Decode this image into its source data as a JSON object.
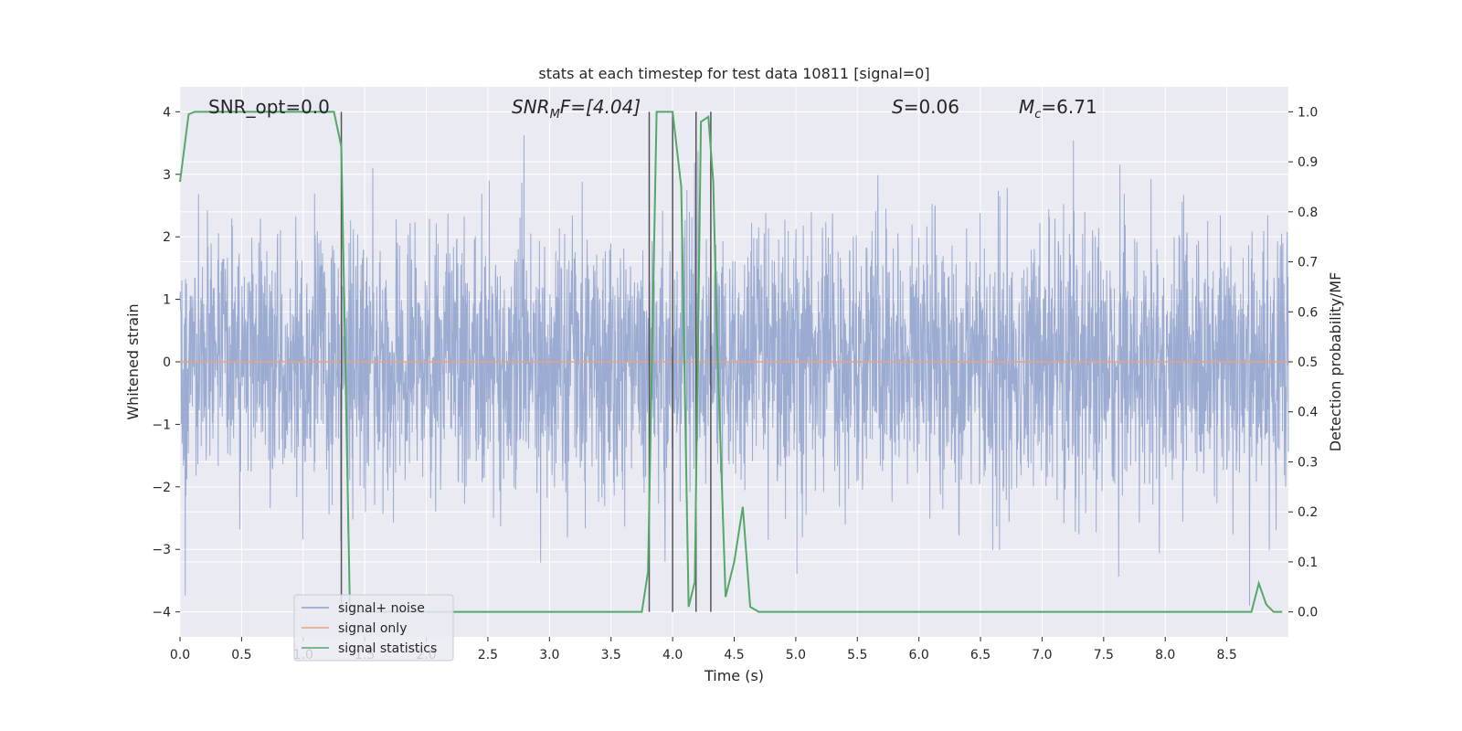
{
  "chart_data": {
    "type": "line",
    "title": "stats at each timestep for test data 10811 [signal=0]",
    "xlabel": "Time (s)",
    "ylabel": "Whitened strain",
    "y2label": "Detection probability/MF",
    "xlim": [
      0,
      9.0
    ],
    "ylim": [
      -4.4,
      4.4
    ],
    "y2lim": [
      -0.05,
      1.05
    ],
    "x_ticks": [
      "0.0",
      "0.5",
      "1.0",
      "1.5",
      "2.0",
      "2.5",
      "3.0",
      "3.5",
      "4.0",
      "4.5",
      "5.0",
      "5.5",
      "6.0",
      "6.5",
      "7.0",
      "7.5",
      "8.0",
      "8.5"
    ],
    "x_tick_values": [
      0,
      0.5,
      1,
      1.5,
      2,
      2.5,
      3,
      3.5,
      4,
      4.5,
      5,
      5.5,
      6,
      6.5,
      7,
      7.5,
      8,
      8.5
    ],
    "y_ticks": [
      "4",
      "3",
      "2",
      "1",
      "0",
      "−1",
      "−2",
      "−3",
      "−4"
    ],
    "y_tick_values": [
      4,
      3,
      2,
      1,
      0,
      -1,
      -2,
      -3,
      -4
    ],
    "y2_ticks": [
      "1.0",
      "0.9",
      "0.8",
      "0.7",
      "0.6",
      "0.5",
      "0.4",
      "0.3",
      "0.2",
      "0.1",
      "0.0"
    ],
    "y2_tick_values": [
      1.0,
      0.9,
      0.8,
      0.7,
      0.6,
      0.5,
      0.4,
      0.3,
      0.2,
      0.1,
      0.0
    ],
    "grid": true,
    "legend_position": "bottom-left",
    "annotations": {
      "snr_opt": "SNR_opt=0.0",
      "snr_mf": "SNR",
      "snr_mf_sub": "M",
      "snr_mf_rest": "F=[4.04]",
      "s": "S",
      "s_rest": "=0.06",
      "mc": "M",
      "mc_sub": "c",
      "mc_rest": "=6.71"
    },
    "series": [
      {
        "name": "signal+ noise",
        "color": "#8da0cb",
        "axis": "left",
        "style": "noise",
        "t_range": [
          0,
          9.0
        ],
        "amplitude_peak_max": 4.0,
        "amplitude_peak_min": -3.9
      },
      {
        "name": "signal only",
        "color": "#e8a383",
        "axis": "left",
        "x": [
          0,
          9.0
        ],
        "y": [
          0,
          0
        ]
      },
      {
        "name": "signal statistics",
        "color": "#55a868",
        "axis": "right",
        "x": [
          0,
          0.07,
          0.12,
          1.25,
          1.31,
          1.38,
          1.45,
          3.75,
          3.8,
          3.87,
          4.0,
          4.07,
          4.13,
          4.18,
          4.23,
          4.29,
          4.33,
          4.36,
          4.43,
          4.5,
          4.57,
          4.63,
          4.7,
          8.7,
          8.76,
          8.82,
          8.88,
          8.95
        ],
        "y": [
          0.86,
          0.995,
          1.0,
          1.0,
          0.93,
          0.0,
          0.0,
          0.0,
          0.08,
          1.0,
          1.0,
          0.85,
          0.01,
          0.06,
          0.98,
          0.99,
          0.86,
          0.55,
          0.03,
          0.1,
          0.21,
          0.01,
          0.0,
          0.0,
          0.057,
          0.015,
          0.0,
          0.0
        ]
      }
    ],
    "vlines": [
      1.31,
      3.81,
      4.0,
      4.19,
      4.31
    ],
    "vline_color": "#555555"
  }
}
